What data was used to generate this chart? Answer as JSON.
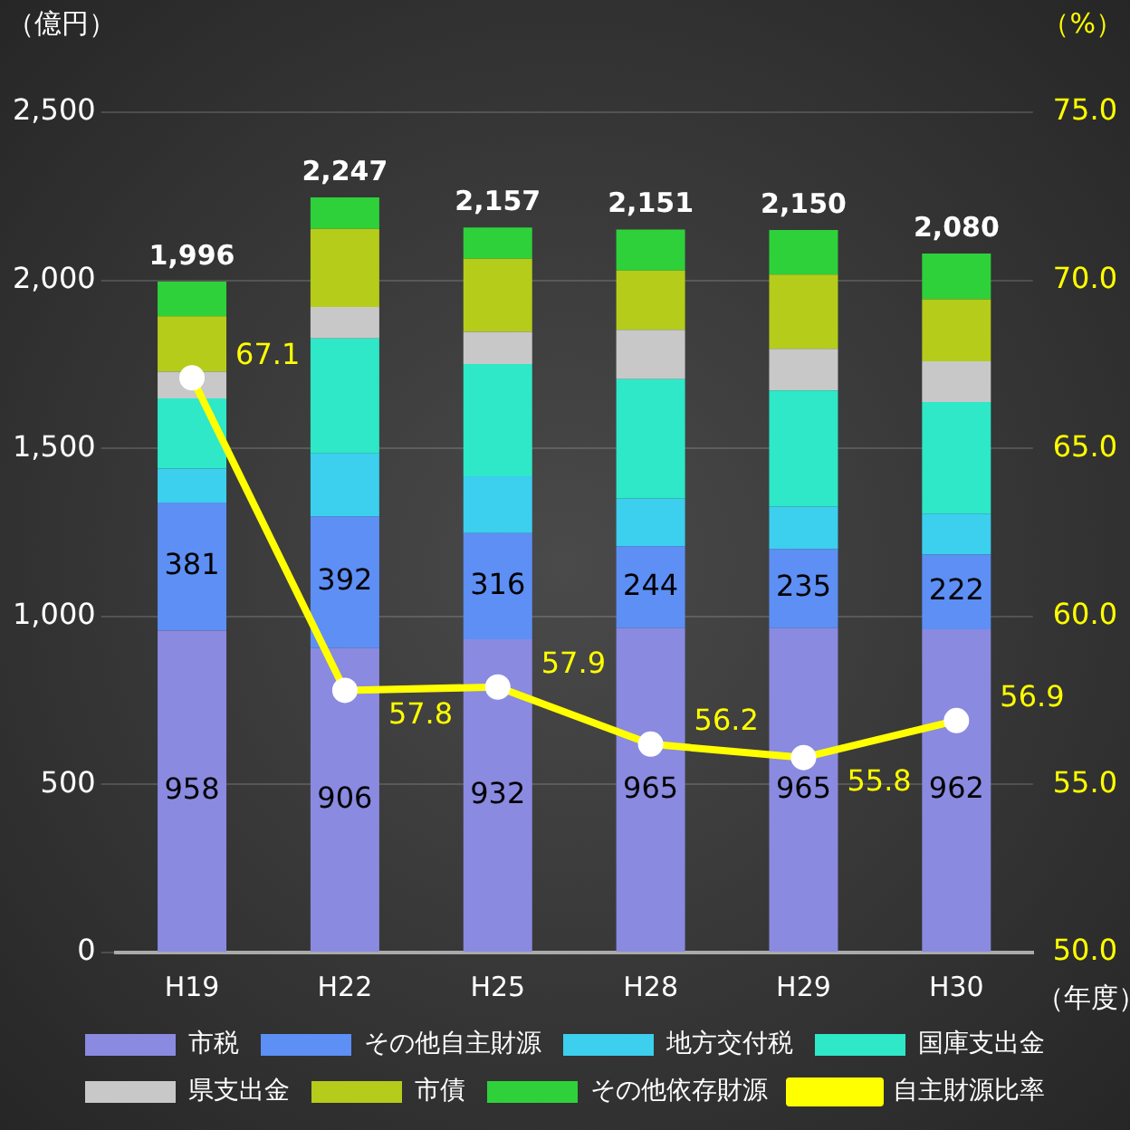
{
  "chart_data": {
    "type": "bar",
    "stacked": true,
    "ylabel": "（億円）",
    "y2label": "（%）",
    "xlabel": "（年度）",
    "categories": [
      "H19",
      "H22",
      "H25",
      "H28",
      "H29",
      "H30"
    ],
    "series": [
      {
        "name": "市税",
        "color": "#8a8ae0",
        "values": [
          958,
          906,
          932,
          965,
          965,
          962
        ],
        "value_labels": [
          "958",
          "906",
          "932",
          "965",
          "965",
          "962"
        ]
      },
      {
        "name": "その他自主財源",
        "color": "#5d8ff5",
        "values": [
          381,
          392,
          316,
          244,
          235,
          222
        ],
        "value_labels": [
          "381",
          "392",
          "316",
          "244",
          "235",
          "222"
        ]
      },
      {
        "name": "地方交付税",
        "color": "#3ccfee",
        "values": [
          101,
          187,
          169,
          142,
          127,
          122
        ]
      },
      {
        "name": "国庫支出金",
        "color": "#2ee8c8",
        "values": [
          209,
          342,
          334,
          355,
          345,
          332
        ]
      },
      {
        "name": "県支出金",
        "color": "#c8c8c8",
        "values": [
          79,
          94,
          96,
          147,
          124,
          121
        ]
      },
      {
        "name": "市債",
        "color": "#b5cc1a",
        "values": [
          165,
          232,
          217,
          176,
          221,
          185
        ]
      },
      {
        "name": "その他依存財源",
        "color": "#2ed13a",
        "values": [
          103,
          94,
          93,
          122,
          133,
          136
        ]
      },
      {
        "name": "自主財源比率",
        "type": "line",
        "axis": "y2",
        "color": "#ffff00",
        "marker": "circle",
        "values": [
          67.1,
          57.8,
          57.9,
          56.2,
          55.8,
          56.9
        ],
        "value_labels": [
          "67.1",
          "57.8",
          "57.9",
          "56.2",
          "55.8",
          "56.9"
        ]
      }
    ],
    "totals": [
      "1,996",
      "2,247",
      "2,157",
      "2,151",
      "2,150",
      "2,080"
    ],
    "ylim": [
      0,
      2500
    ],
    "yticks": [
      {
        "value": 0,
        "label": "0"
      },
      {
        "value": 500,
        "label": "500"
      },
      {
        "value": 1000,
        "label": "1,000"
      },
      {
        "value": 1500,
        "label": "1,500"
      },
      {
        "value": 2000,
        "label": "2,000"
      },
      {
        "value": 2500,
        "label": "2,500"
      }
    ],
    "y2lim": [
      50,
      75
    ],
    "y2ticks": [
      {
        "value": 50,
        "label": "50.0"
      },
      {
        "value": 55,
        "label": "55.0"
      },
      {
        "value": 60,
        "label": "60.0"
      },
      {
        "value": 65,
        "label": "65.0"
      },
      {
        "value": 70,
        "label": "70.0"
      },
      {
        "value": 75,
        "label": "75.0"
      }
    ],
    "grid": "y",
    "legend": "bottom"
  }
}
